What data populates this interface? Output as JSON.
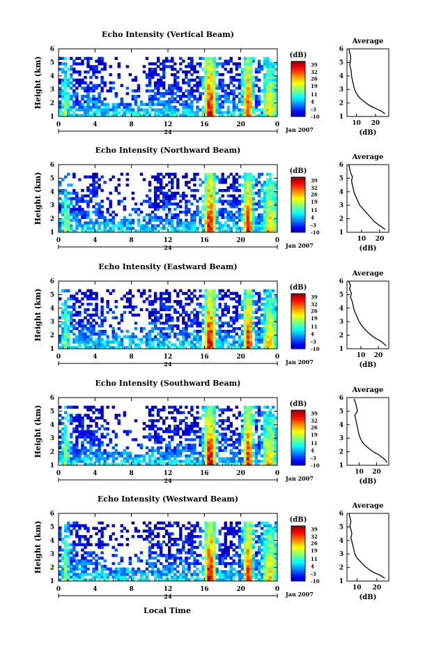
{
  "figure": {
    "xlabel_bottom": "Local Time"
  },
  "colorbar": {
    "unit": "(dB)",
    "ticks": [
      "39",
      "32",
      "26",
      "19",
      "11",
      "4",
      "-3",
      "-10"
    ],
    "tick_values": [
      39,
      32,
      26,
      19,
      11,
      4,
      -3,
      -10
    ],
    "range": [
      -10,
      42
    ]
  },
  "chart_data": [
    {
      "type": "heatmap",
      "title": "Echo Intensity (Vertical Beam)",
      "ylabel": "Height (km)",
      "xticks": [
        "0",
        "4",
        "8",
        "12",
        "16",
        "20",
        "0"
      ],
      "xtick_values": [
        0,
        4,
        8,
        12,
        16,
        20,
        24
      ],
      "ylim": [
        1,
        6
      ],
      "yticks": [
        "1",
        "2",
        "3",
        "4",
        "5",
        "6"
      ],
      "date_mark": "24",
      "date_label": "Jan 2007",
      "profile": {
        "title": "Average",
        "xlabel": "(dB)",
        "xticks": [
          "10",
          "20"
        ],
        "xlim": [
          5,
          27
        ],
        "x": [
          6,
          6.5,
          7,
          6.8,
          6.5,
          7,
          7.3,
          7.5,
          8,
          8.5,
          9,
          10,
          11.5,
          14,
          17,
          20,
          23,
          25
        ],
        "y": [
          6.0,
          5.7,
          5.4,
          5.1,
          4.8,
          4.5,
          4.2,
          3.9,
          3.6,
          3.3,
          3.0,
          2.7,
          2.4,
          2.1,
          1.8,
          1.6,
          1.4,
          1.2
        ]
      }
    },
    {
      "type": "heatmap",
      "title": "Echo Intensity (Northward Beam)",
      "ylabel": "Height (km)",
      "xticks": [
        "0",
        "4",
        "8",
        "12",
        "16",
        "20",
        "0"
      ],
      "xtick_values": [
        0,
        4,
        8,
        12,
        16,
        20,
        24
      ],
      "ylim": [
        1,
        6
      ],
      "yticks": [
        "1",
        "2",
        "3",
        "4",
        "5",
        "6"
      ],
      "date_mark": "24",
      "date_label": "Jan 2007",
      "profile": {
        "title": "Average",
        "xlabel": "(dB)",
        "xticks": [
          "10",
          "20"
        ],
        "xlim": [
          2,
          25
        ],
        "x": [
          3,
          3.5,
          4,
          5,
          4.5,
          5,
          5.5,
          6,
          7,
          8,
          9,
          11,
          13,
          15,
          17,
          19,
          21,
          23
        ],
        "y": [
          6.0,
          5.7,
          5.4,
          5.1,
          4.8,
          4.5,
          4.2,
          3.9,
          3.6,
          3.3,
          3.0,
          2.7,
          2.4,
          2.1,
          1.8,
          1.6,
          1.4,
          1.2
        ]
      }
    },
    {
      "type": "heatmap",
      "title": "Echo Intensity (Eastward Beam)",
      "ylabel": "Height (km)",
      "xticks": [
        "0",
        "4",
        "8",
        "12",
        "16",
        "20",
        "0"
      ],
      "xtick_values": [
        0,
        4,
        8,
        12,
        16,
        20,
        24
      ],
      "ylim": [
        1,
        6
      ],
      "yticks": [
        "1",
        "2",
        "3",
        "4",
        "5",
        "6"
      ],
      "date_mark": "24",
      "date_label": "Jan 2007",
      "profile": {
        "title": "Average",
        "xlabel": "(dB)",
        "xticks": [
          "10",
          "20"
        ],
        "xlim": [
          2,
          26
        ],
        "x": [
          3,
          4,
          3.5,
          4.5,
          4,
          5,
          5.5,
          6,
          7,
          8,
          9,
          10.5,
          12.5,
          15,
          18,
          21,
          23,
          24.5
        ],
        "y": [
          6.0,
          5.7,
          5.4,
          5.1,
          4.8,
          4.5,
          4.2,
          3.9,
          3.6,
          3.3,
          3.0,
          2.7,
          2.4,
          2.1,
          1.8,
          1.6,
          1.4,
          1.2
        ]
      }
    },
    {
      "type": "heatmap",
      "title": "Echo Intensity (Southward Beam)",
      "ylabel": "Height (km)",
      "xticks": [
        "0",
        "4",
        "8",
        "12",
        "16",
        "20",
        "0"
      ],
      "xtick_values": [
        0,
        4,
        8,
        12,
        16,
        20,
        24
      ],
      "ylim": [
        1,
        6
      ],
      "yticks": [
        "1",
        "2",
        "3",
        "4",
        "5",
        "6"
      ],
      "date_mark": "24",
      "date_label": "Jan 2007",
      "profile": {
        "title": "Average",
        "xlabel": "(dB)",
        "xticks": [
          "10",
          "20"
        ],
        "xlim": [
          3,
          27
        ],
        "x": [
          7,
          8,
          8.5,
          9,
          7.5,
          8,
          8.5,
          9,
          9.5,
          10,
          11,
          12.5,
          15,
          18,
          21,
          23,
          25,
          26
        ],
        "y": [
          5.9,
          5.6,
          5.3,
          5.0,
          4.7,
          4.4,
          4.1,
          3.8,
          3.5,
          3.2,
          2.9,
          2.6,
          2.3,
          2.0,
          1.8,
          1.6,
          1.4,
          1.2
        ]
      }
    },
    {
      "type": "heatmap",
      "title": "Echo Intensity (Westward Beam)",
      "ylabel": "Height (km)",
      "xticks": [
        "0",
        "4",
        "8",
        "12",
        "16",
        "20",
        "0"
      ],
      "xtick_values": [
        0,
        4,
        8,
        12,
        16,
        20,
        24
      ],
      "ylim": [
        1,
        6
      ],
      "yticks": [
        "1",
        "2",
        "3",
        "4",
        "5",
        "6"
      ],
      "date_mark": "24",
      "date_label": "Jan 2007",
      "profile": {
        "title": "Average",
        "xlabel": "(dB)",
        "xticks": [
          "10",
          "20"
        ],
        "xlim": [
          5,
          26
        ],
        "x": [
          6,
          6.5,
          7,
          6.5,
          7,
          7.5,
          7,
          7.5,
          8,
          8.5,
          9,
          10,
          12,
          14,
          16.5,
          19,
          22,
          24
        ],
        "y": [
          6.0,
          5.7,
          5.4,
          5.1,
          4.8,
          4.5,
          4.2,
          3.9,
          3.6,
          3.3,
          3.0,
          2.7,
          2.4,
          2.1,
          1.8,
          1.6,
          1.4,
          1.2
        ]
      }
    }
  ]
}
